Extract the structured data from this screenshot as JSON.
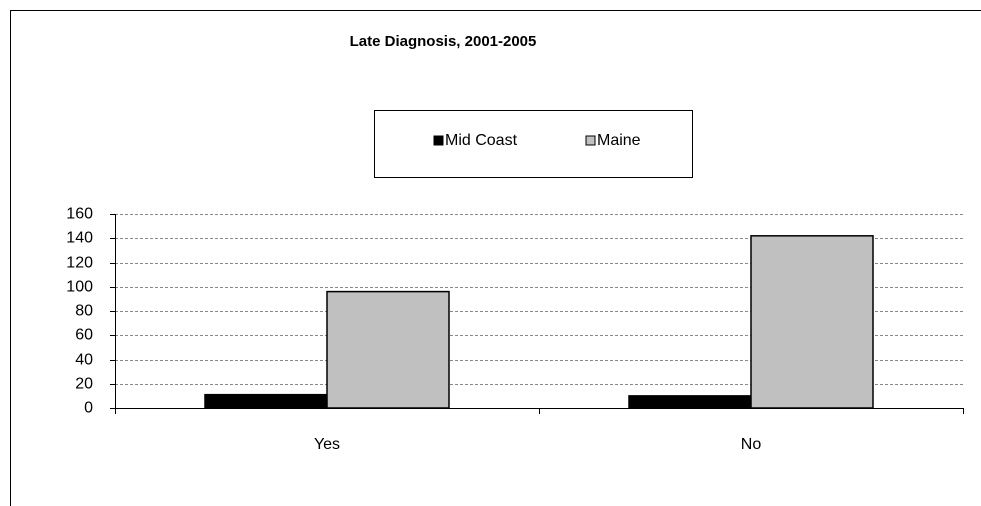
{
  "chart_data": {
    "type": "bar",
    "title": "Late Diagnosis,  2001-2005",
    "categories": [
      "Yes",
      "No"
    ],
    "series": [
      {
        "name": "Mid Coast",
        "color": "#000000",
        "values": [
          11,
          10
        ]
      },
      {
        "name": "Maine",
        "color": "#c0c0c0",
        "values": [
          96,
          142
        ]
      }
    ],
    "ylim": [
      0,
      160
    ],
    "yticks": [
      0,
      20,
      40,
      60,
      80,
      100,
      120,
      140,
      160
    ],
    "grid": true,
    "legend": "top"
  }
}
